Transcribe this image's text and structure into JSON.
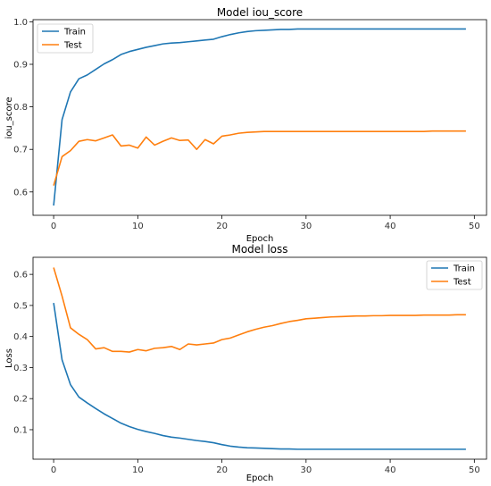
{
  "chart_data": [
    {
      "type": "line",
      "title": "Model iou_score",
      "xlabel": "Epoch",
      "ylabel": "iou_score",
      "xlim": [
        -2.45,
        51.45
      ],
      "ylim": [
        0.545,
        1.005
      ],
      "xticks": [
        0,
        10,
        20,
        30,
        40,
        50
      ],
      "yticks": [
        0.6,
        0.7,
        0.8,
        0.9,
        1.0
      ],
      "ytick_labels": [
        "0.6",
        "0.7",
        "0.8",
        "0.9",
        "1.0"
      ],
      "grid": false,
      "legend": "top-left",
      "series": [
        {
          "name": "Train",
          "color": "#1f77b4",
          "x": [
            0,
            1,
            2,
            3,
            4,
            5,
            6,
            7,
            8,
            9,
            10,
            11,
            12,
            13,
            14,
            15,
            16,
            17,
            18,
            19,
            20,
            21,
            22,
            23,
            24,
            25,
            26,
            27,
            28,
            29,
            30,
            31,
            32,
            33,
            34,
            35,
            36,
            37,
            38,
            39,
            40,
            41,
            42,
            43,
            44,
            45,
            46,
            47,
            48,
            49
          ],
          "values": [
            0.568,
            0.77,
            0.835,
            0.866,
            0.875,
            0.888,
            0.901,
            0.911,
            0.923,
            0.93,
            0.935,
            0.94,
            0.944,
            0.948,
            0.95,
            0.951,
            0.953,
            0.955,
            0.957,
            0.959,
            0.965,
            0.97,
            0.974,
            0.977,
            0.979,
            0.98,
            0.981,
            0.982,
            0.982,
            0.983,
            0.983,
            0.983,
            0.983,
            0.983,
            0.983,
            0.983,
            0.983,
            0.983,
            0.983,
            0.983,
            0.983,
            0.983,
            0.983,
            0.983,
            0.983,
            0.983,
            0.983,
            0.983,
            0.983,
            0.983
          ]
        },
        {
          "name": "Test",
          "color": "#ff7f0e",
          "x": [
            0,
            1,
            2,
            3,
            4,
            5,
            6,
            7,
            8,
            9,
            10,
            11,
            12,
            13,
            14,
            15,
            16,
            17,
            18,
            19,
            20,
            21,
            22,
            23,
            24,
            25,
            26,
            27,
            28,
            29,
            30,
            31,
            32,
            33,
            34,
            35,
            36,
            37,
            38,
            39,
            40,
            41,
            42,
            43,
            44,
            45,
            46,
            47,
            48,
            49
          ],
          "values": [
            0.615,
            0.683,
            0.697,
            0.719,
            0.723,
            0.72,
            0.727,
            0.734,
            0.708,
            0.71,
            0.703,
            0.729,
            0.71,
            0.719,
            0.727,
            0.721,
            0.722,
            0.7,
            0.723,
            0.713,
            0.731,
            0.734,
            0.738,
            0.74,
            0.741,
            0.742,
            0.742,
            0.742,
            0.742,
            0.742,
            0.742,
            0.742,
            0.742,
            0.742,
            0.742,
            0.742,
            0.742,
            0.742,
            0.742,
            0.742,
            0.742,
            0.742,
            0.742,
            0.742,
            0.742,
            0.743,
            0.743,
            0.743,
            0.743,
            0.743
          ]
        }
      ]
    },
    {
      "type": "line",
      "title": "Model loss",
      "xlabel": "Epoch",
      "ylabel": "Loss",
      "xlim": [
        -2.45,
        51.45
      ],
      "ylim": [
        0.005,
        0.655
      ],
      "xticks": [
        0,
        10,
        20,
        30,
        40,
        50
      ],
      "yticks": [
        0.1,
        0.2,
        0.3,
        0.4,
        0.5,
        0.6
      ],
      "ytick_labels": [
        "0.1",
        "0.2",
        "0.3",
        "0.4",
        "0.5",
        "0.6"
      ],
      "grid": false,
      "legend": "top-right",
      "series": [
        {
          "name": "Train",
          "color": "#1f77b4",
          "x": [
            0,
            1,
            2,
            3,
            4,
            5,
            6,
            7,
            8,
            9,
            10,
            11,
            12,
            13,
            14,
            15,
            16,
            17,
            18,
            19,
            20,
            21,
            22,
            23,
            24,
            25,
            26,
            27,
            28,
            29,
            30,
            31,
            32,
            33,
            34,
            35,
            36,
            37,
            38,
            39,
            40,
            41,
            42,
            43,
            44,
            45,
            46,
            47,
            48,
            49
          ],
          "values": [
            0.508,
            0.325,
            0.245,
            0.205,
            0.186,
            0.168,
            0.151,
            0.136,
            0.121,
            0.11,
            0.101,
            0.094,
            0.088,
            0.081,
            0.076,
            0.073,
            0.069,
            0.065,
            0.062,
            0.058,
            0.052,
            0.047,
            0.044,
            0.042,
            0.041,
            0.04,
            0.039,
            0.038,
            0.038,
            0.037,
            0.037,
            0.037,
            0.037,
            0.037,
            0.037,
            0.037,
            0.037,
            0.037,
            0.037,
            0.037,
            0.037,
            0.037,
            0.037,
            0.037,
            0.037,
            0.037,
            0.037,
            0.037,
            0.037,
            0.037
          ]
        },
        {
          "name": "Test",
          "color": "#ff7f0e",
          "x": [
            0,
            1,
            2,
            3,
            4,
            5,
            6,
            7,
            8,
            9,
            10,
            11,
            12,
            13,
            14,
            15,
            16,
            17,
            18,
            19,
            20,
            21,
            22,
            23,
            24,
            25,
            26,
            27,
            28,
            29,
            30,
            31,
            32,
            33,
            34,
            35,
            36,
            37,
            38,
            39,
            40,
            41,
            42,
            43,
            44,
            45,
            46,
            47,
            48,
            49
          ],
          "values": [
            0.622,
            0.53,
            0.428,
            0.407,
            0.39,
            0.36,
            0.364,
            0.352,
            0.352,
            0.35,
            0.358,
            0.354,
            0.362,
            0.364,
            0.368,
            0.358,
            0.376,
            0.373,
            0.376,
            0.379,
            0.39,
            0.395,
            0.405,
            0.415,
            0.423,
            0.43,
            0.435,
            0.442,
            0.448,
            0.452,
            0.457,
            0.459,
            0.461,
            0.463,
            0.464,
            0.465,
            0.466,
            0.466,
            0.467,
            0.467,
            0.468,
            0.468,
            0.468,
            0.468,
            0.469,
            0.469,
            0.469,
            0.469,
            0.47,
            0.47
          ]
        }
      ]
    }
  ]
}
